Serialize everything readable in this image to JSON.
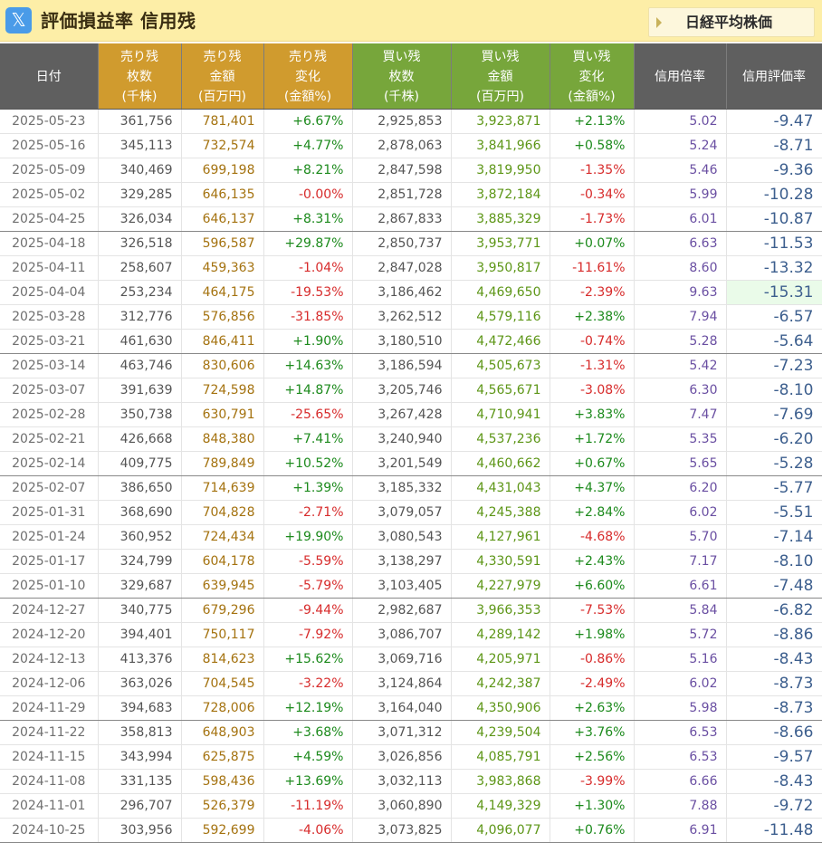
{
  "header": {
    "x_label": "𝕏",
    "title": "評価損益率 信用残",
    "nikkei_link": "日経平均株価"
  },
  "columns": [
    [
      "日付"
    ],
    [
      "売り残",
      "枚数",
      "(千株)"
    ],
    [
      "売り残",
      "金額",
      "(百万円)"
    ],
    [
      "売り残",
      "変化",
      "(金額%)"
    ],
    [
      "買い残",
      "枚数",
      "(千株)"
    ],
    [
      "買い残",
      "金額",
      "(百万円)"
    ],
    [
      "買い残",
      "変化",
      "(金額%)"
    ],
    [
      "信用倍率"
    ],
    [
      "信用評価率"
    ]
  ],
  "rows": [
    [
      "2025-05-23",
      "361,756",
      "781,401",
      "+6.67%",
      "2,925,853",
      "3,923,871",
      "+2.13%",
      "5.02",
      "-9.47"
    ],
    [
      "2025-05-16",
      "345,113",
      "732,574",
      "+4.77%",
      "2,878,063",
      "3,841,966",
      "+0.58%",
      "5.24",
      "-8.71"
    ],
    [
      "2025-05-09",
      "340,469",
      "699,198",
      "+8.21%",
      "2,847,598",
      "3,819,950",
      "-1.35%",
      "5.46",
      "-9.36"
    ],
    [
      "2025-05-02",
      "329,285",
      "646,135",
      "-0.00%",
      "2,851,728",
      "3,872,184",
      "-0.34%",
      "5.99",
      "-10.28"
    ],
    [
      "2025-04-25",
      "326,034",
      "646,137",
      "+8.31%",
      "2,867,833",
      "3,885,329",
      "-1.73%",
      "6.01",
      "-10.87"
    ],
    [
      "2025-04-18",
      "326,518",
      "596,587",
      "+29.87%",
      "2,850,737",
      "3,953,771",
      "+0.07%",
      "6.63",
      "-11.53"
    ],
    [
      "2025-04-11",
      "258,607",
      "459,363",
      "-1.04%",
      "2,847,028",
      "3,950,817",
      "-11.61%",
      "8.60",
      "-13.32"
    ],
    [
      "2025-04-04",
      "253,234",
      "464,175",
      "-19.53%",
      "3,186,462",
      "4,469,650",
      "-2.39%",
      "9.63",
      "-15.31"
    ],
    [
      "2025-03-28",
      "312,776",
      "576,856",
      "-31.85%",
      "3,262,512",
      "4,579,116",
      "+2.38%",
      "7.94",
      "-6.57"
    ],
    [
      "2025-03-21",
      "461,630",
      "846,411",
      "+1.90%",
      "3,180,510",
      "4,472,466",
      "-0.74%",
      "5.28",
      "-5.64"
    ],
    [
      "2025-03-14",
      "463,746",
      "830,606",
      "+14.63%",
      "3,186,594",
      "4,505,673",
      "-1.31%",
      "5.42",
      "-7.23"
    ],
    [
      "2025-03-07",
      "391,639",
      "724,598",
      "+14.87%",
      "3,205,746",
      "4,565,671",
      "-3.08%",
      "6.30",
      "-8.10"
    ],
    [
      "2025-02-28",
      "350,738",
      "630,791",
      "-25.65%",
      "3,267,428",
      "4,710,941",
      "+3.83%",
      "7.47",
      "-7.69"
    ],
    [
      "2025-02-21",
      "426,668",
      "848,380",
      "+7.41%",
      "3,240,940",
      "4,537,236",
      "+1.72%",
      "5.35",
      "-6.20"
    ],
    [
      "2025-02-14",
      "409,775",
      "789,849",
      "+10.52%",
      "3,201,549",
      "4,460,662",
      "+0.67%",
      "5.65",
      "-5.28"
    ],
    [
      "2025-02-07",
      "386,650",
      "714,639",
      "+1.39%",
      "3,185,332",
      "4,431,043",
      "+4.37%",
      "6.20",
      "-5.77"
    ],
    [
      "2025-01-31",
      "368,690",
      "704,828",
      "-2.71%",
      "3,079,057",
      "4,245,388",
      "+2.84%",
      "6.02",
      "-5.51"
    ],
    [
      "2025-01-24",
      "360,952",
      "724,434",
      "+19.90%",
      "3,080,543",
      "4,127,961",
      "-4.68%",
      "5.70",
      "-7.14"
    ],
    [
      "2025-01-17",
      "324,799",
      "604,178",
      "-5.59%",
      "3,138,297",
      "4,330,591",
      "+2.43%",
      "7.17",
      "-8.10"
    ],
    [
      "2025-01-10",
      "329,687",
      "639,945",
      "-5.79%",
      "3,103,405",
      "4,227,979",
      "+6.60%",
      "6.61",
      "-7.48"
    ],
    [
      "2024-12-27",
      "340,775",
      "679,296",
      "-9.44%",
      "2,982,687",
      "3,966,353",
      "-7.53%",
      "5.84",
      "-6.82"
    ],
    [
      "2024-12-20",
      "394,401",
      "750,117",
      "-7.92%",
      "3,086,707",
      "4,289,142",
      "+1.98%",
      "5.72",
      "-8.86"
    ],
    [
      "2024-12-13",
      "413,376",
      "814,623",
      "+15.62%",
      "3,069,716",
      "4,205,971",
      "-0.86%",
      "5.16",
      "-8.43"
    ],
    [
      "2024-12-06",
      "363,026",
      "704,545",
      "-3.22%",
      "3,124,864",
      "4,242,387",
      "-2.49%",
      "6.02",
      "-8.73"
    ],
    [
      "2024-11-29",
      "394,683",
      "728,006",
      "+12.19%",
      "3,164,040",
      "4,350,906",
      "+2.63%",
      "5.98",
      "-8.73"
    ],
    [
      "2024-11-22",
      "358,813",
      "648,903",
      "+3.68%",
      "3,071,312",
      "4,239,504",
      "+3.76%",
      "6.53",
      "-8.66"
    ],
    [
      "2024-11-15",
      "343,994",
      "625,875",
      "+4.59%",
      "3,026,856",
      "4,085,791",
      "+2.56%",
      "6.53",
      "-9.57"
    ],
    [
      "2024-11-08",
      "331,135",
      "598,436",
      "+13.69%",
      "3,032,113",
      "3,983,868",
      "-3.99%",
      "6.66",
      "-8.43"
    ],
    [
      "2024-11-01",
      "296,707",
      "526,379",
      "-11.19%",
      "3,060,890",
      "4,149,329",
      "+1.30%",
      "7.88",
      "-9.72"
    ],
    [
      "2024-10-25",
      "303,956",
      "592,699",
      "-4.06%",
      "3,073,825",
      "4,096,077",
      "+0.76%",
      "6.91",
      "-11.48"
    ]
  ],
  "highlight_row": 7,
  "colors": {
    "header_bar": "#fdeea7",
    "sell_header": "#d09b2e",
    "buy_header": "#77a63b",
    "neutral_header": "#5f5f5f",
    "positive": "#1c8a1c",
    "negative": "#d72b2b"
  }
}
